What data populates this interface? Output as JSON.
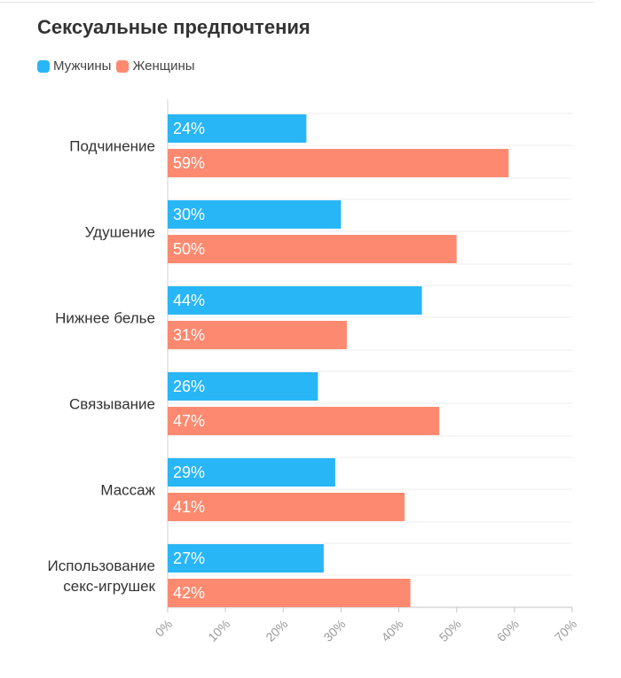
{
  "colors": {
    "men": "#29b6f6",
    "women": "#fd8a70"
  },
  "chart_data": {
    "type": "bar",
    "orientation": "horizontal",
    "title": "Сексуальные предпочтения",
    "categories": [
      [
        "Подчинение"
      ],
      [
        "Удушение"
      ],
      [
        "Нижнее белье"
      ],
      [
        "Связывание"
      ],
      [
        "Массаж"
      ],
      [
        "Использование",
        "секс-игрушек"
      ]
    ],
    "series": [
      {
        "name": "Мужчины",
        "values": [
          24,
          30,
          44,
          26,
          29,
          27
        ],
        "labels": [
          "24%",
          "30%",
          "44%",
          "26%",
          "29%",
          "27%"
        ]
      },
      {
        "name": "Женщины",
        "values": [
          59,
          50,
          31,
          47,
          41,
          42
        ],
        "labels": [
          "59%",
          "50%",
          "31%",
          "47%",
          "41%",
          "42%"
        ]
      }
    ],
    "xlim": [
      0,
      70
    ],
    "xticks": [
      "0%",
      "10%",
      "20%",
      "30%",
      "40%",
      "50%",
      "60%",
      "70%"
    ],
    "grid": true,
    "legend": "top-left"
  }
}
